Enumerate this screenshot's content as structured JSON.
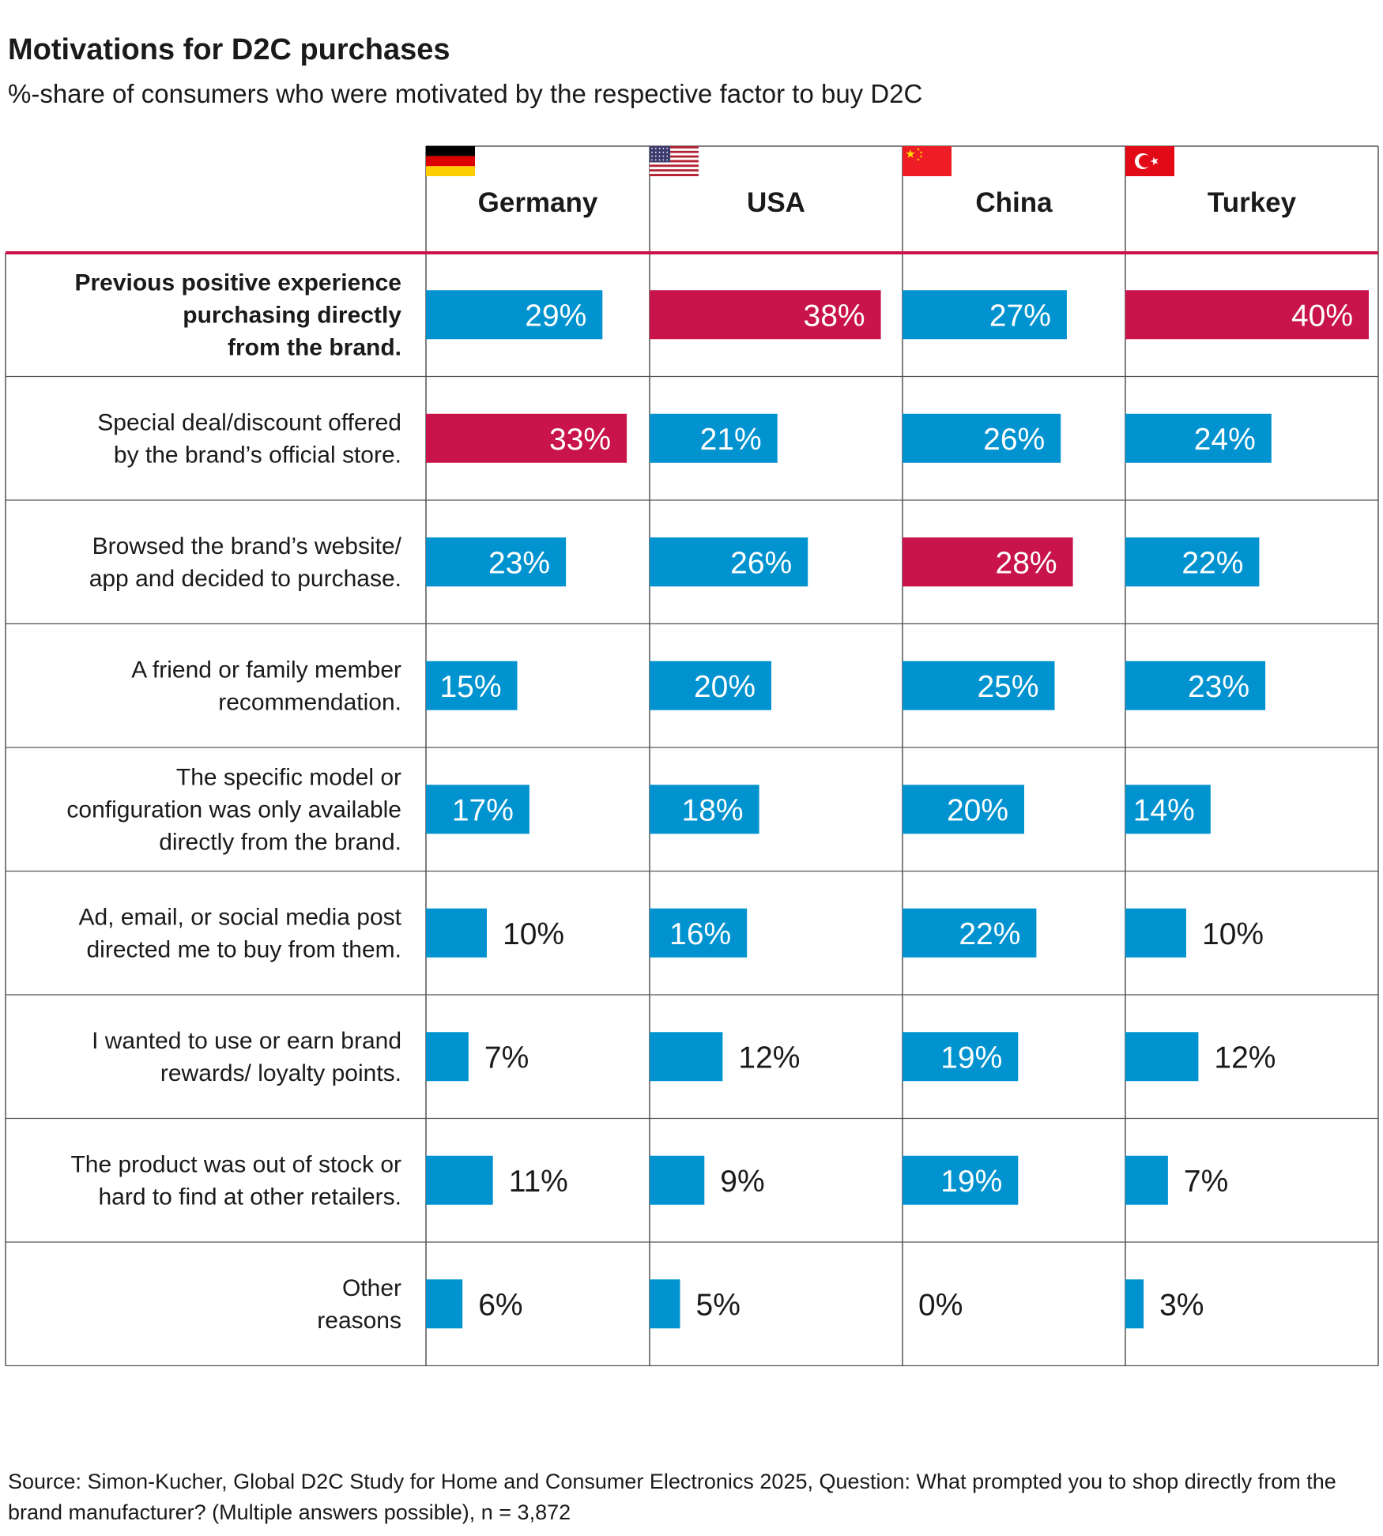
{
  "title": "Motivations for D2C purchases",
  "subtitle": "%-share of consumers who were motivated by the respective factor to buy D2C",
  "source": "Source: Simon-Kucher, Global D2C Study for Home and Consumer Electronics 2025, Question: What prompted you to shop directly from the brand manufacturer? (Multiple answers possible), n = 3,872",
  "colors": {
    "bar": "#0093d0",
    "highlight": "#c8144a",
    "divider": "#c8144a",
    "grid": "#555555"
  },
  "chart_data": {
    "type": "bar",
    "orientation": "horizontal",
    "layout": "small-multiples",
    "value_suffix": "%",
    "categories": [
      [
        "Previous positive experience",
        "purchasing directly",
        "from the brand."
      ],
      [
        "Special deal/discount offered",
        "by the brand’s official store."
      ],
      [
        "Browsed the brand’s website/",
        "app and decided to purchase."
      ],
      [
        "A friend or family member",
        "recommendation."
      ],
      [
        "The specific model or",
        "configuration was only available",
        "directly from the brand."
      ],
      [
        "Ad, email, or social media post",
        "directed me to buy from them."
      ],
      [
        "I wanted to use or earn brand",
        "rewards/ loyalty points."
      ],
      [
        "The product was out of stock or",
        "hard to find at other retailers."
      ],
      [
        "Other",
        "reasons"
      ]
    ],
    "bold_category_index": 0,
    "series": [
      {
        "name": "Germany",
        "flag": "germany-flag-icon",
        "values": [
          29,
          33,
          23,
          15,
          17,
          10,
          7,
          11,
          6
        ],
        "highlight_index": 1
      },
      {
        "name": "USA",
        "flag": "usa-flag-icon",
        "values": [
          38,
          21,
          26,
          20,
          18,
          16,
          12,
          9,
          5
        ],
        "highlight_index": 0
      },
      {
        "name": "China",
        "flag": "china-flag-icon",
        "values": [
          27,
          26,
          28,
          25,
          20,
          22,
          19,
          19,
          0
        ],
        "highlight_index": 2
      },
      {
        "name": "Turkey",
        "flag": "turkey-flag-icon",
        "values": [
          40,
          24,
          22,
          23,
          14,
          10,
          12,
          7,
          3
        ],
        "highlight_index": 0
      }
    ],
    "xlim": [
      0,
      40
    ],
    "legend": "none",
    "grid": true
  }
}
